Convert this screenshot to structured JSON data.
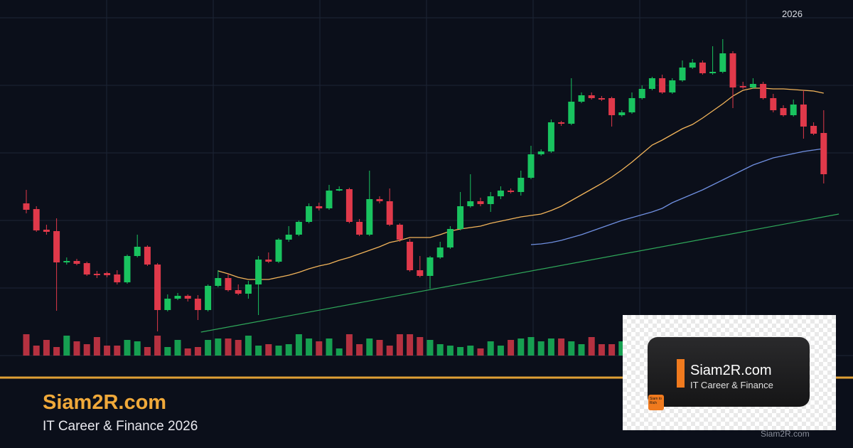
{
  "header": {
    "year": "2026"
  },
  "footer": {
    "title": "Siam2R.com",
    "subtitle": "IT Career & Finance 2026"
  },
  "logo": {
    "title": "Siam2R.com",
    "subtitle": "IT Career & Finance",
    "badge": "Siam to Rich"
  },
  "watermark": "Siam2R.com",
  "chart_data": {
    "type": "candlestick",
    "up_color": "#19c35f",
    "down_color": "#e0394a",
    "ylim": [
      0,
      480
    ],
    "open": [
      214,
      206,
      177,
      175,
      131,
      133,
      130,
      115,
      116,
      114,
      103,
      140,
      153,
      128,
      64,
      80,
      84,
      80,
      64,
      98,
      109,
      92,
      87,
      100,
      135,
      132,
      163,
      170,
      188,
      210,
      207,
      232,
      234,
      188,
      170,
      220,
      217,
      184,
      160,
      120,
      112,
      138,
      152,
      178,
      210,
      217,
      213,
      224,
      232,
      230,
      250,
      283,
      287,
      328,
      326,
      357,
      366,
      362,
      362,
      338,
      342,
      362,
      375,
      390,
      370,
      387,
      405,
      412,
      397,
      399,
      425,
      379,
      377,
      382,
      362,
      348,
      338,
      353,
      323,
      313
    ],
    "high": [
      233,
      210,
      184,
      193,
      138,
      136,
      132,
      119,
      118,
      120,
      142,
      170,
      155,
      130,
      86,
      88,
      86,
      85,
      100,
      120,
      115,
      100,
      105,
      140,
      145,
      165,
      182,
      190,
      214,
      215,
      240,
      238,
      236,
      192,
      260,
      224,
      235,
      186,
      164,
      140,
      140,
      160,
      182,
      230,
      255,
      222,
      230,
      238,
      235,
      260,
      295,
      290,
      332,
      330,
      390,
      370,
      370,
      365,
      364,
      345,
      370,
      380,
      392,
      395,
      390,
      415,
      417,
      415,
      435,
      445,
      428,
      385,
      390,
      385,
      368,
      352,
      360,
      373,
      328,
      345
    ],
    "low": [
      200,
      174,
      170,
      63,
      128,
      127,
      112,
      109,
      110,
      100,
      101,
      138,
      126,
      34,
      62,
      78,
      76,
      50,
      62,
      96,
      90,
      85,
      80,
      57,
      130,
      130,
      160,
      168,
      186,
      204,
      205,
      231,
      186,
      168,
      168,
      214,
      182,
      160,
      118,
      110,
      94,
      136,
      150,
      176,
      208,
      210,
      202,
      220,
      228,
      225,
      248,
      281,
      285,
      323,
      324,
      355,
      360,
      358,
      322,
      336,
      340,
      360,
      373,
      368,
      368,
      385,
      403,
      395,
      395,
      397,
      348,
      375,
      375,
      360,
      342,
      336,
      336,
      305,
      310,
      242
    ],
    "close": [
      205,
      176,
      174,
      131,
      133,
      129,
      114,
      113,
      113,
      103,
      140,
      153,
      128,
      64,
      80,
      84,
      80,
      64,
      98,
      109,
      92,
      87,
      100,
      135,
      132,
      163,
      170,
      188,
      210,
      207,
      232,
      234,
      188,
      170,
      220,
      217,
      184,
      163,
      120,
      112,
      138,
      152,
      178,
      210,
      217,
      213,
      224,
      232,
      230,
      250,
      283,
      287,
      328,
      326,
      357,
      366,
      362,
      360,
      338,
      342,
      362,
      375,
      390,
      370,
      387,
      405,
      412,
      397,
      399,
      425,
      377,
      377,
      382,
      362,
      345,
      338,
      353,
      322,
      312,
      255
    ],
    "volume": {
      "ylim": [
        0,
        30
      ],
      "values": [
        30,
        14,
        22,
        12,
        28,
        20,
        16,
        26,
        14,
        14,
        22,
        20,
        12,
        28,
        12,
        22,
        10,
        12,
        22,
        24,
        24,
        22,
        28,
        14,
        16,
        14,
        16,
        30,
        24,
        20,
        24,
        10,
        30,
        16,
        24,
        22,
        14,
        30,
        30,
        26,
        22,
        16,
        14,
        12,
        14,
        10,
        20,
        14,
        22,
        24,
        26,
        20,
        24,
        24,
        20,
        16,
        26,
        16,
        16,
        20,
        22,
        18,
        20,
        24,
        22,
        26,
        20,
        18,
        22,
        24,
        26,
        22,
        20,
        18,
        22,
        24,
        20,
        26,
        22,
        24
      ]
    },
    "series": [
      {
        "color": "#f2b45a",
        "values": [
          null,
          null,
          null,
          null,
          null,
          null,
          null,
          null,
          null,
          null,
          null,
          null,
          null,
          null,
          null,
          null,
          null,
          null,
          null,
          119,
          115,
          110,
          107,
          107,
          107,
          110,
          113,
          117,
          122,
          126,
          129,
          134,
          138,
          143,
          148,
          153,
          159,
          162,
          166,
          166,
          166,
          170,
          175,
          178,
          180,
          182,
          186,
          189,
          192,
          195,
          197,
          199,
          204,
          210,
          218,
          226,
          234,
          242,
          251,
          261,
          272,
          284,
          296,
          303,
          311,
          319,
          325,
          334,
          344,
          354,
          365,
          373,
          376,
          376,
          375,
          375,
          374,
          373,
          372,
          369
        ]
      },
      {
        "color": "#6f8fe0",
        "values": [
          null,
          null,
          null,
          null,
          null,
          null,
          null,
          null,
          null,
          null,
          null,
          null,
          null,
          null,
          null,
          null,
          null,
          null,
          null,
          null,
          null,
          null,
          null,
          null,
          null,
          null,
          null,
          null,
          null,
          null,
          null,
          null,
          null,
          null,
          null,
          null,
          null,
          null,
          null,
          null,
          null,
          null,
          null,
          null,
          null,
          null,
          null,
          null,
          null,
          null,
          156,
          157,
          159,
          162,
          166,
          170,
          175,
          180,
          185,
          190,
          194,
          198,
          202,
          207,
          215,
          221,
          227,
          233,
          240,
          247,
          254,
          261,
          268,
          273,
          278,
          281,
          284,
          287,
          289,
          291
        ]
      }
    ],
    "trendline": {
      "color": "#2fa85a",
      "x": [
        17.3,
        80.5
      ],
      "values": [
        33,
        199
      ]
    }
  }
}
